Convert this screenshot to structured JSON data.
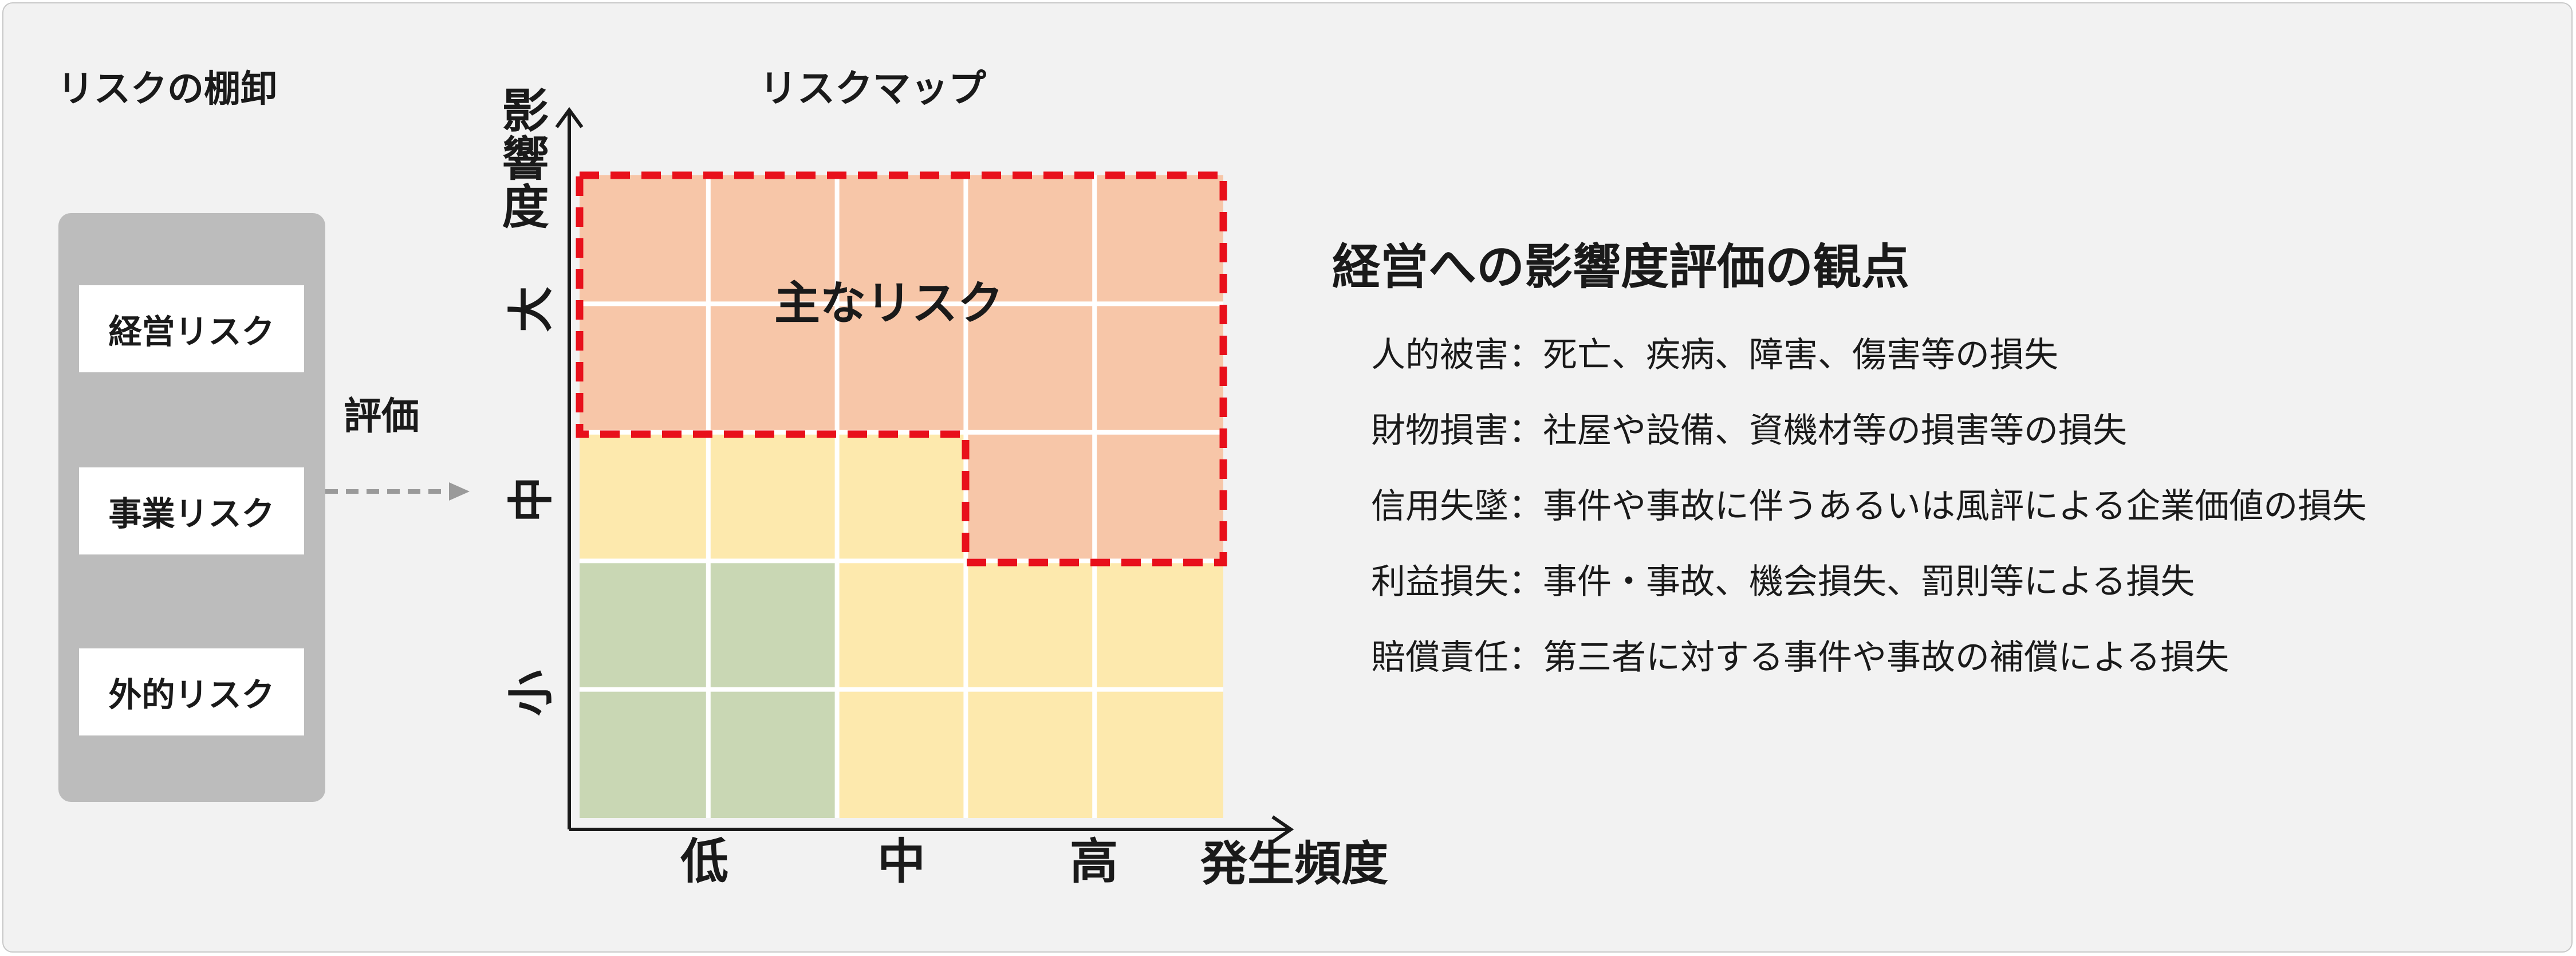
{
  "inventory": {
    "title": "リスクの棚卸",
    "items": [
      "経営リスク",
      "事業リスク",
      "外的リスク"
    ]
  },
  "evaluation_label": "評価",
  "risk_map": {
    "title": "リスクマップ",
    "y_axis_label": "影響度",
    "y_levels": [
      "大",
      "中",
      "小"
    ],
    "x_axis_label": "発生頻度",
    "x_levels": [
      "低",
      "中",
      "高"
    ],
    "highlight_label": "主なリスク",
    "colors": {
      "high": "#f7c6a8",
      "medium": "#fde9ad",
      "low": "#c9d7b4",
      "highlight_border": "#e8101b",
      "grid_line": "#ffffff"
    }
  },
  "viewpoints": {
    "title": "経営への影響度評価の観点",
    "items": [
      "人的被害：死亡、疾病、障害、傷害等の損失",
      "財物損害：社屋や設備、資機材等の損害等の損失",
      "信用失墜：事件や事故に伴うあるいは風評による企業価値の損失",
      "利益損失：事件・事故、機会損失、罰則等による損失",
      "賠償責任：第三者に対する事件や事故の補償による損失"
    ]
  }
}
